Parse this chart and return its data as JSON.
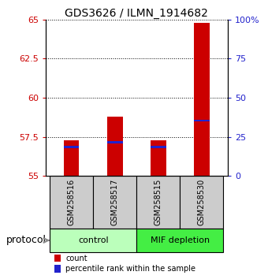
{
  "title": "GDS3626 / ILMN_1914682",
  "samples": [
    "GSM258516",
    "GSM258517",
    "GSM258515",
    "GSM258530"
  ],
  "bar_bottom": 55,
  "bar_tops": [
    57.3,
    58.8,
    57.3,
    64.8
  ],
  "percentile_values": [
    56.85,
    57.15,
    56.85,
    58.55
  ],
  "ylim_left": [
    55,
    65
  ],
  "ylim_right": [
    0,
    100
  ],
  "yticks_left": [
    55,
    57.5,
    60,
    62.5,
    65
  ],
  "yticks_right": [
    0,
    25,
    50,
    75,
    100
  ],
  "bar_color": "#cc0000",
  "percentile_color": "#2222cc",
  "groups": [
    {
      "label": "control",
      "indices": [
        0,
        1
      ],
      "color": "#bbffbb"
    },
    {
      "label": "MIF depletion",
      "indices": [
        2,
        3
      ],
      "color": "#44ee44"
    }
  ],
  "protocol_label": "protocol",
  "legend_items": [
    {
      "color": "#cc0000",
      "label": "count"
    },
    {
      "color": "#2222cc",
      "label": "percentile rank within the sample"
    }
  ],
  "tick_label_color_left": "#cc0000",
  "tick_label_color_right": "#2222cc"
}
